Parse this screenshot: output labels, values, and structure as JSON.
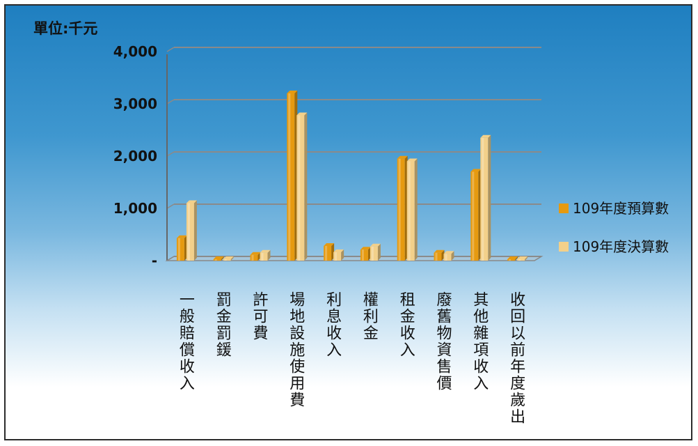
{
  "chart_data": {
    "type": "bar",
    "unit_label": "單位:千元",
    "categories": [
      "一般賠償收入",
      "罰金罰鍰",
      "許可費",
      "場地設施使用費",
      "利息收入",
      "權利金",
      "租金收入",
      "廢舊物資售價",
      "其他雜項收入",
      "收回以前年度歲出"
    ],
    "series": [
      {
        "name": "109年度預算數",
        "color": "#e69a10",
        "values": [
          430,
          15,
          110,
          3200,
          280,
          210,
          1950,
          150,
          1700,
          25
        ]
      },
      {
        "name": "109年度決算數",
        "color": "#f3d08a",
        "values": [
          1100,
          15,
          150,
          2780,
          160,
          270,
          1900,
          130,
          2350,
          25
        ]
      }
    ],
    "yticks": [
      "-",
      "1,000",
      "2,000",
      "3,000",
      "4,000"
    ],
    "ylim": [
      0,
      4000
    ],
    "grid": true,
    "legend_position": "right"
  }
}
